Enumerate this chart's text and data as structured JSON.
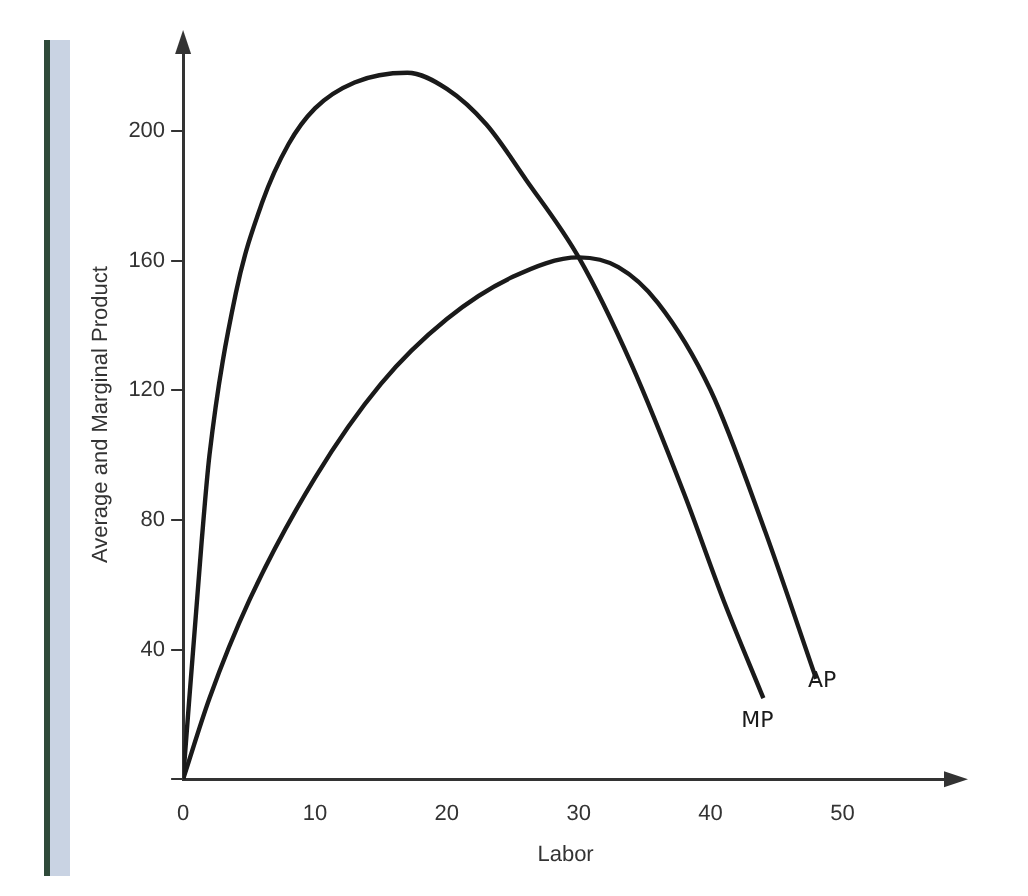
{
  "chart_data": {
    "type": "line",
    "xlabel": "Labor",
    "ylabel": "Average and Marginal Product",
    "series": [
      {
        "name": "MP",
        "color": "#1a1a1a",
        "x": [
          0,
          1.4,
          2,
          4,
          6,
          8,
          10,
          13,
          17,
          20,
          23,
          26,
          30,
          34,
          38,
          41,
          44
        ],
        "values": [
          0,
          73,
          100,
          150,
          178,
          196,
          207,
          215,
          218,
          213,
          202,
          185,
          161,
          128,
          88,
          55,
          25
        ]
      },
      {
        "name": "AP",
        "color": "#1a1a1a",
        "x": [
          0,
          2,
          5,
          10,
          15,
          20,
          25,
          30,
          33,
          36,
          40,
          44,
          48
        ],
        "values": [
          0,
          25,
          55,
          93,
          122,
          142,
          155,
          161,
          158,
          147,
          120,
          78,
          31
        ]
      }
    ],
    "xlim": [
      0,
      58
    ],
    "ylim": [
      0,
      225
    ],
    "xticks": [
      0,
      10,
      20,
      30,
      40,
      50
    ],
    "yticks": [
      {
        "value": 0,
        "label": null
      },
      40,
      80,
      120,
      160,
      200
    ],
    "grid": false,
    "legend": false,
    "marker": "none",
    "line_style": "solid"
  }
}
